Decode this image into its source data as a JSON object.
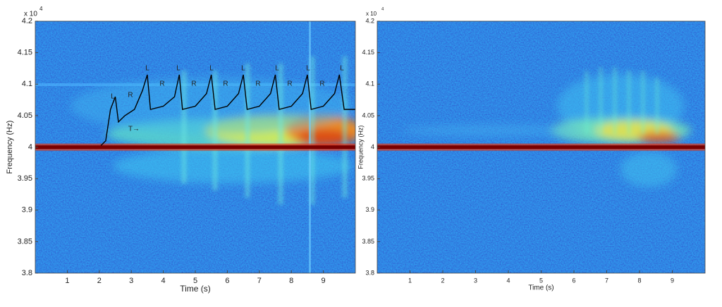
{
  "chart_data": [
    {
      "type": "spectrogram",
      "x_label": "Time (s)",
      "y_label": "Frequency (Hz)",
      "y_exponent_base": "x 10",
      "y_exponent": "4",
      "xlim": [
        0,
        10
      ],
      "ylim": [
        3.8,
        4.2
      ],
      "xticks": [
        1,
        2,
        3,
        4,
        5,
        6,
        7,
        8,
        9
      ],
      "yticks": [
        3.8,
        3.85,
        3.9,
        3.95,
        4,
        4.05,
        4.1,
        4.15,
        4.2
      ],
      "carrier": 4,
      "carrier_color": "#7a0000",
      "series": [
        {
          "color": "#000000",
          "x": [
            2.0,
            2.2,
            2.35,
            2.5,
            2.6,
            2.8,
            3.1,
            3.35,
            3.5,
            3.6,
            4.0,
            4.35,
            4.5,
            4.6,
            5.0,
            5.35,
            5.5,
            5.62,
            6.0,
            6.35,
            6.5,
            6.62,
            7.0,
            7.35,
            7.5,
            7.62,
            8.0,
            8.35,
            8.5,
            8.62,
            9.0,
            9.35,
            9.5,
            9.65,
            9.9,
            10.0
          ],
          "values": [
            4.0,
            4.01,
            4.06,
            4.08,
            4.04,
            4.05,
            4.06,
            4.09,
            4.115,
            4.06,
            4.065,
            4.08,
            4.115,
            4.06,
            4.065,
            4.085,
            4.115,
            4.06,
            4.065,
            4.085,
            4.115,
            4.06,
            4.065,
            4.085,
            4.115,
            4.06,
            4.065,
            4.085,
            4.115,
            4.06,
            4.065,
            4.085,
            4.115,
            4.06,
            4.06,
            4.06
          ]
        }
      ],
      "annotations": [
        "L",
        "R",
        "L",
        "R",
        "L",
        "R",
        "L",
        "R",
        "L",
        "R",
        "L",
        "R",
        "L",
        "R",
        "L",
        "T→"
      ]
    },
    {
      "type": "spectrogram",
      "x_label": "Time (s)",
      "y_label": "Frequency (Hz)",
      "y_exponent_base": "x 10",
      "y_exponent": "4",
      "xlim": [
        0,
        10
      ],
      "ylim": [
        3.8,
        4.2
      ],
      "xticks": [
        1,
        2,
        3,
        4,
        5,
        6,
        7,
        8,
        9
      ],
      "yticks": [
        3.8,
        3.85,
        3.9,
        3.95,
        4,
        4.05,
        4.1,
        4.15,
        4.2
      ],
      "carrier": 4,
      "carrier_color": "#7a0000"
    }
  ]
}
